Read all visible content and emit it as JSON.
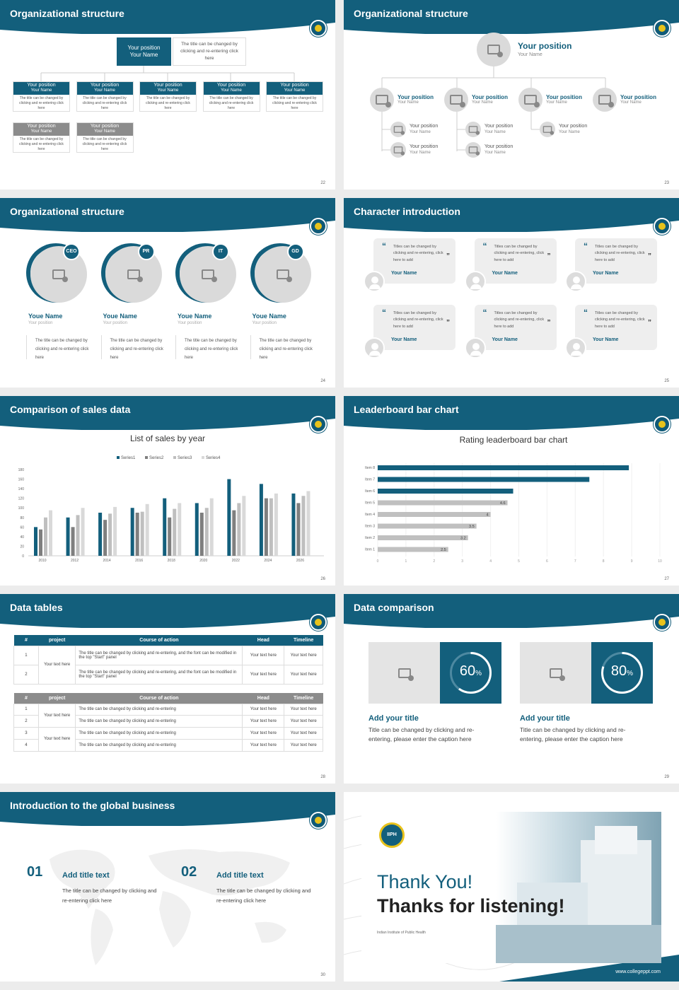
{
  "slides": {
    "s22": {
      "title": "Organizational structure",
      "page": "22",
      "top_box": {
        "position": "Your position",
        "name": "Your Name"
      },
      "top_note": "The title can be changed by clicking and re-entering click here",
      "row1": [
        {
          "position": "Your position",
          "name": "Your Name",
          "note": "The title can be changed by clicking and re-entering click here"
        },
        {
          "position": "Your position",
          "name": "Your Name",
          "note": "The title can be changed by clicking and re-entering click here"
        },
        {
          "position": "Your position",
          "name": "Your Name",
          "note": "The title can be changed by clicking and re-entering click here"
        },
        {
          "position": "Your position",
          "name": "Your Name",
          "note": "The title can be changed by clicking and re-entering click here"
        },
        {
          "position": "Your position",
          "name": "Your Name",
          "note": "The title can be changed by clicking and re-entering click here"
        }
      ],
      "row2": [
        {
          "position": "Your position",
          "name": "Your Name",
          "note": "The title can be changed by clicking and re-entering click here"
        },
        {
          "position": "Your position",
          "name": "Your Name",
          "note": "The title can be changed by clicking and re-entering click here"
        }
      ]
    },
    "s23": {
      "title": "Organizational structure",
      "page": "23",
      "top": {
        "position": "Your position",
        "name": "Your Name"
      },
      "level2": [
        {
          "position": "Your position",
          "name": "Your Name"
        },
        {
          "position": "Your position",
          "name": "Your Name"
        },
        {
          "position": "Your position",
          "name": "Your Name"
        },
        {
          "position": "Your position",
          "name": "Your Name"
        }
      ],
      "level3": [
        {
          "position": "Your position",
          "name": "Your Name"
        },
        {
          "position": "Your position",
          "name": "Your Name"
        },
        {
          "position": "Your position",
          "name": "Your Name"
        },
        {
          "position": "Your position",
          "name": "Your Name"
        },
        {
          "position": "Your position",
          "name": "Your Name"
        }
      ]
    },
    "s24": {
      "title": "Organizational structure",
      "page": "24",
      "people": [
        {
          "badge": "CEO",
          "name": "Youe Name",
          "position": "Your position",
          "note": "The title can be changed by clicking and re-entering click here"
        },
        {
          "badge": "PR",
          "name": "Youe Name",
          "position": "Your position",
          "note": "The title can be changed by clicking and re-entering click here"
        },
        {
          "badge": "IT",
          "name": "Youe Name",
          "position": "Your position",
          "note": "The title can be changed by clicking and re-entering click here"
        },
        {
          "badge": "GD",
          "name": "Youe Name",
          "position": "Your position",
          "note": "The title can be changed by clicking and re-entering click here"
        }
      ]
    },
    "s25": {
      "title": "Character introduction",
      "page": "25",
      "quote": "Titles can be changed by clicking and re-entering, click here to add",
      "name": "Your Name",
      "cards": 6
    },
    "s26": {
      "title": "Comparison of sales data",
      "page": "26"
    },
    "s27": {
      "title": "Leaderboard bar chart",
      "page": "27"
    },
    "s28": {
      "title": "Data tables",
      "page": "28",
      "t1": {
        "headers": [
          "#",
          "project",
          "Course of action",
          "Head",
          "Timeline"
        ],
        "rows": [
          {
            "n": "1",
            "action": "The title can be changed by clicking and re-entering, and the font can be modified in the top \"Start\" panel",
            "head": "Your text here",
            "timeline": "Your text here"
          },
          {
            "n": "2",
            "action": "The title can be changed by clicking and re-entering, and the font can be modified in the top \"Start\" panel",
            "head": "Your text here",
            "timeline": "Your text here"
          }
        ],
        "project": "Your text here"
      },
      "t2": {
        "headers": [
          "#",
          "project",
          "Course of action",
          "Head",
          "Timeline"
        ],
        "rows": [
          {
            "n": "1",
            "action": "The title can be changed by clicking and re-entering",
            "head": "Your text here",
            "timeline": "Your text here"
          },
          {
            "n": "2",
            "action": "The title can be changed by clicking and re-entering",
            "head": "Your text here",
            "timeline": "Your text here"
          },
          {
            "n": "3",
            "action": "The title can be changed by clicking and re-entering",
            "head": "Your text here",
            "timeline": "Your text here"
          },
          {
            "n": "4",
            "action": "The title can be changed by clicking and re-entering",
            "head": "Your text here",
            "timeline": "Your text here"
          }
        ],
        "project_a": "Your text here",
        "project_b": "Your text here"
      }
    },
    "s29": {
      "title": "Data comparison",
      "page": "29",
      "items": [
        {
          "percent": "60",
          "suffix": "%",
          "heading": "Add your title",
          "text": "Title can be changed by clicking and re-entering, please enter the caption here",
          "value": 0.6
        },
        {
          "percent": "80",
          "suffix": "%",
          "heading": "Add your title",
          "text": "Title can be changed by clicking and re-entering, please enter the caption here",
          "value": 0.8
        }
      ]
    },
    "s30": {
      "title": "Introduction to the global business",
      "page": "30",
      "items": [
        {
          "num": "01",
          "heading": "Add title text",
          "text": "The title can be changed by clicking and re-entering click here"
        },
        {
          "num": "02",
          "heading": "Add title text",
          "text": "The title can be changed by clicking and re-entering click here"
        }
      ]
    },
    "s31": {
      "line1": "Thank You!",
      "line2": "Thanks for listening!",
      "org": "Indian Institute of Public Health",
      "url": "www.collegeppt.com",
      "logo_text": "IIPH"
    }
  },
  "chart_data": [
    {
      "type": "bar",
      "title": "List of sales by year",
      "categories": [
        "2010",
        "2012",
        "2014",
        "2016",
        "2018",
        "2020",
        "2022",
        "2024",
        "2026"
      ],
      "series": [
        {
          "name": "Series1",
          "values": [
            60,
            80,
            90,
            100,
            120,
            110,
            160,
            150,
            130
          ]
        },
        {
          "name": "Series2",
          "values": [
            55,
            60,
            75,
            90,
            80,
            90,
            95,
            120,
            110
          ]
        },
        {
          "name": "Series3",
          "values": [
            80,
            85,
            88,
            92,
            98,
            100,
            110,
            120,
            125
          ]
        },
        {
          "name": "Series4",
          "values": [
            95,
            100,
            102,
            108,
            110,
            120,
            125,
            130,
            135
          ]
        }
      ],
      "ylim": [
        0,
        180
      ],
      "yticks": [
        "0",
        "20",
        "40",
        "60",
        "80",
        "100",
        "120",
        "140",
        "160",
        "180"
      ],
      "colors": [
        "#135f7c",
        "#7f7f7f",
        "#bfbfbf",
        "#d9d9d9"
      ],
      "legend": "top",
      "grid": false
    },
    {
      "type": "bar",
      "title": "Rating leaderboard bar chart",
      "orientation": "horizontal",
      "categories": [
        "Item 8",
        "Item 7",
        "Item 6",
        "Item 5",
        "Item 4",
        "Item 3",
        "Item 2",
        "Item 1"
      ],
      "values": [
        8.9,
        7.5,
        4.8,
        4.6,
        4,
        3.5,
        3.2,
        2.5
      ],
      "labels": [
        "",
        "",
        "",
        "4.6",
        "4",
        "3.5",
        "3.2",
        "2.5"
      ],
      "highlight": [
        true,
        true,
        true,
        false,
        false,
        false,
        false,
        false
      ],
      "xlim": [
        0,
        10
      ],
      "xticks": [
        "0",
        "1",
        "2",
        "3",
        "4",
        "5",
        "6",
        "7",
        "8",
        "9",
        "10"
      ],
      "colors": {
        "highlight": "#135f7c",
        "normal": "#c0c0c0"
      },
      "grid": true
    }
  ],
  "colors": {
    "accent": "#135f7c",
    "gray": "#8c8c8c"
  }
}
